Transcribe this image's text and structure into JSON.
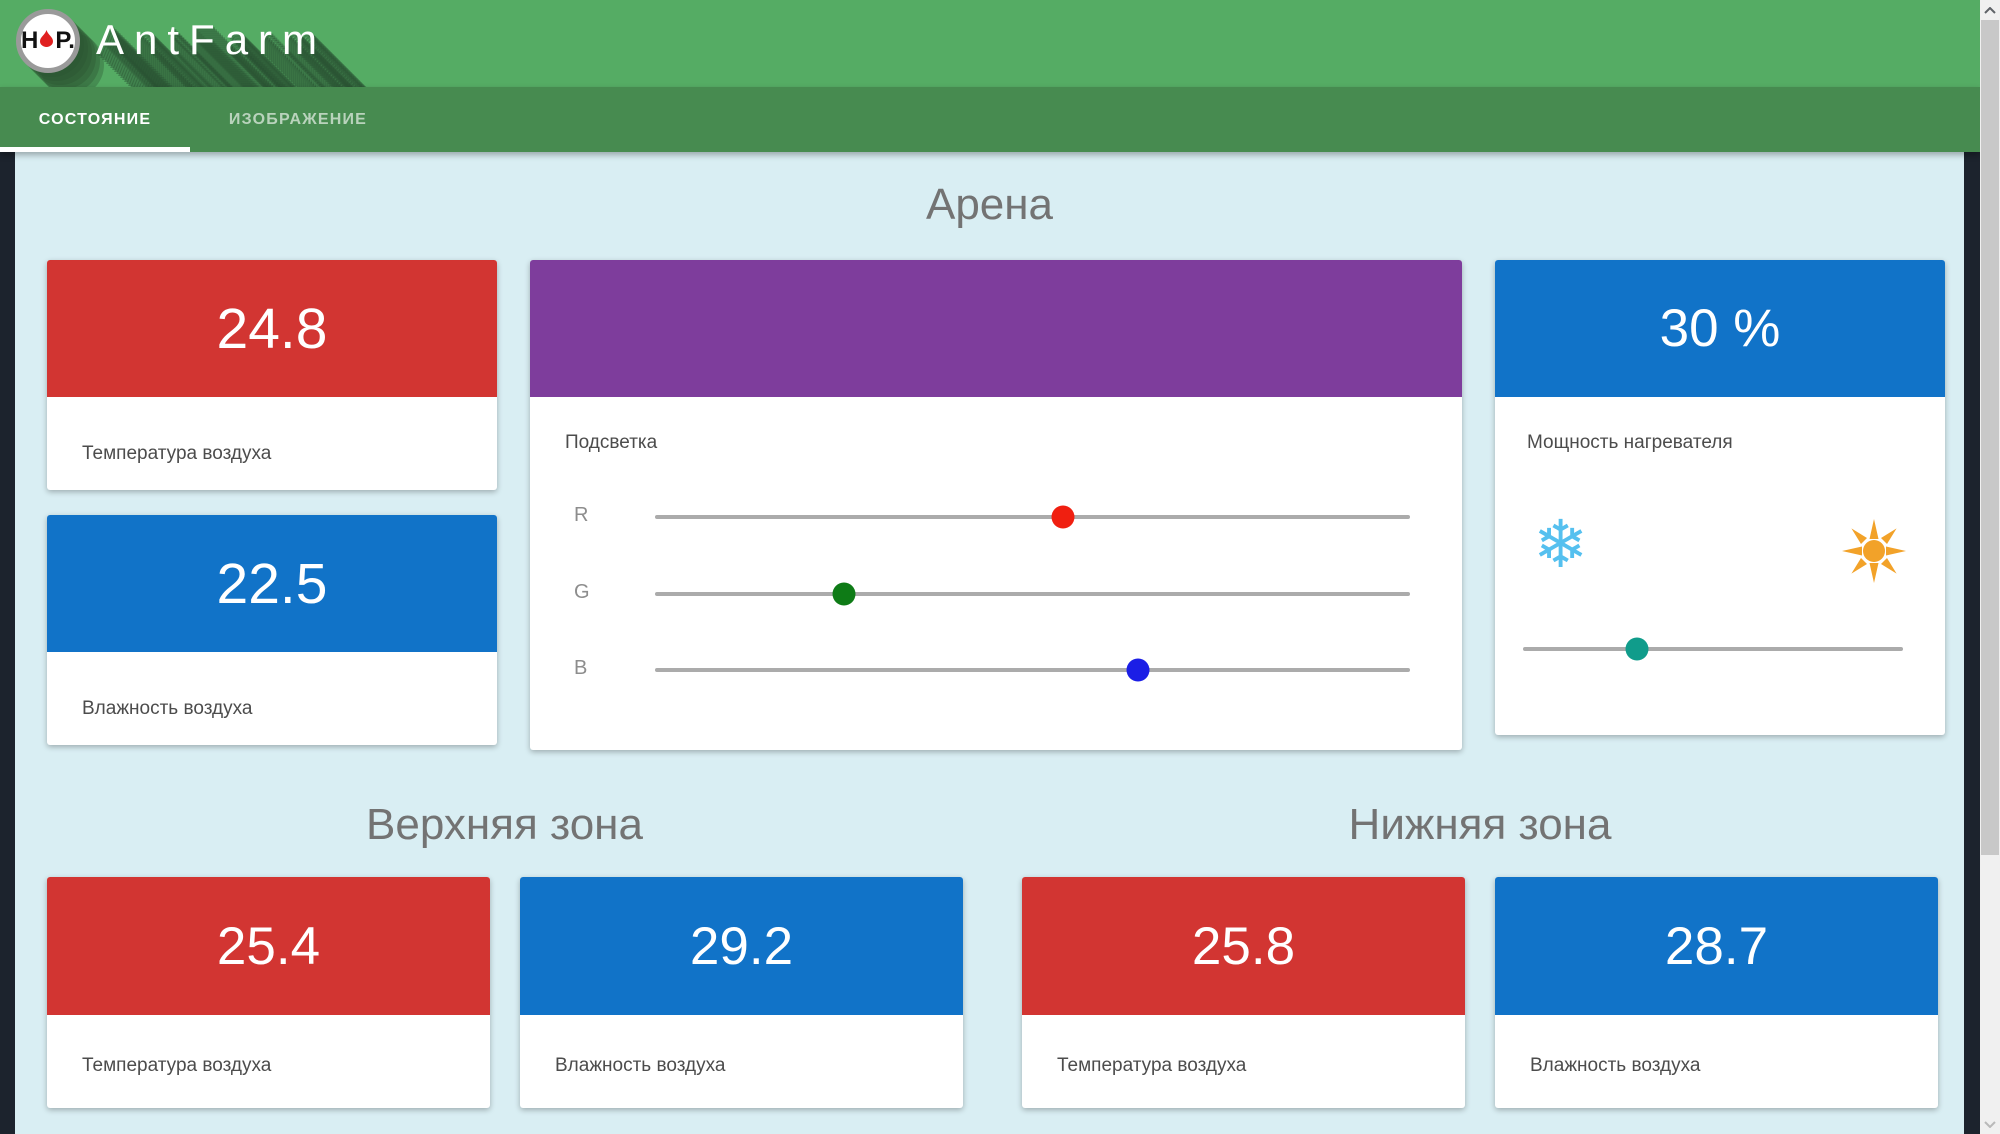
{
  "app": {
    "title": "AntFarm",
    "logo": {
      "left": "H",
      "right": "P."
    }
  },
  "tabs": [
    {
      "label": "СОСТОЯНИЕ",
      "active": true
    },
    {
      "label": "ИЗОБРАЖЕНИЕ",
      "active": false
    }
  ],
  "sections": {
    "arena": {
      "title": "Арена",
      "temp": {
        "value": "24.8",
        "label": "Температура воздуха"
      },
      "humidity": {
        "value": "22.5",
        "label": "Влажность воздуха"
      },
      "light": {
        "label": "Подсветка",
        "channels": [
          {
            "label": "R",
            "percent": 54
          },
          {
            "label": "G",
            "percent": 25
          },
          {
            "label": "B",
            "percent": 64
          }
        ]
      },
      "heater": {
        "value": "30 %",
        "label": "Мощность нагревателя",
        "percent": 30
      }
    },
    "upper_zone": {
      "title": "Верхняя зона",
      "temp": {
        "value": "25.4",
        "label": "Температура воздуха"
      },
      "humidity": {
        "value": "29.2",
        "label": "Влажность воздуха"
      }
    },
    "lower_zone": {
      "title": "Нижняя зона",
      "temp": {
        "value": "25.8",
        "label": "Температура воздуха"
      },
      "humidity": {
        "value": "28.7",
        "label": "Влажность воздуха"
      }
    }
  },
  "colors": {
    "app_bar": "#55ac64",
    "tab_bar": "#478b50",
    "background": "#d9eef3",
    "frame": "#1c232d",
    "temperature_card": "#d23532",
    "humidity_card": "#1173c8",
    "heater_card": "#1173c8",
    "light_preview": "#7e3d9c",
    "thumb_r": "#f01f10",
    "thumb_g": "#0e7b16",
    "thumb_b": "#1b1ee6",
    "thumb_heater": "#109c8b",
    "snowflake": "#55c0ef",
    "sun": "#f2a229"
  }
}
